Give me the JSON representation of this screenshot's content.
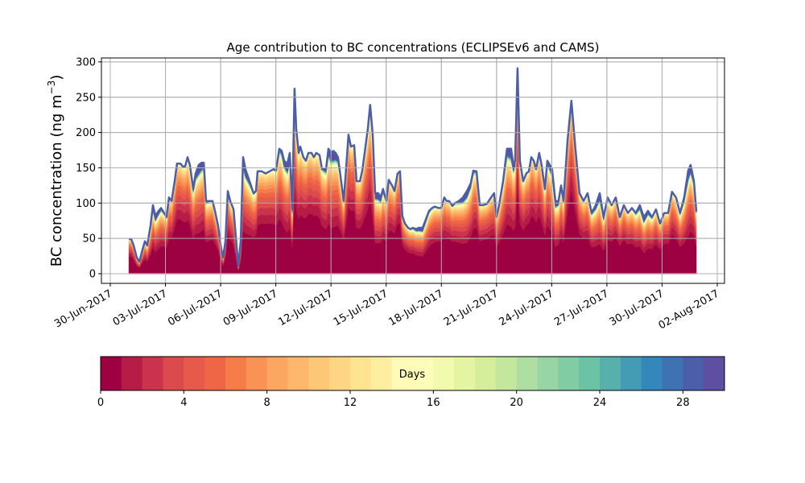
{
  "chart_data": {
    "type": "area",
    "stacked": true,
    "title": "Age contribution to BC concentrations (ECLIPSEv6 and CAMS)",
    "xlabel": "",
    "ylabel": "BC concentration (ng m",
    "ylabel_sup": "−3",
    "ylabel_close": ")",
    "ylim": [
      -15,
      305
    ],
    "yticks": [
      0,
      50,
      100,
      150,
      200,
      250,
      300
    ],
    "x_units": "days since 30-Jun-2017",
    "xlim": [
      -0.5,
      33.4
    ],
    "xticks": [
      0,
      3,
      6,
      9,
      12,
      15,
      18,
      21,
      24,
      27,
      30,
      33
    ],
    "xtick_labels": [
      "30-Jun-2017",
      "03-Jul-2017",
      "06-Jul-2017",
      "09-Jul-2017",
      "12-Jul-2017",
      "15-Jul-2017",
      "18-Jul-2017",
      "21-Jul-2017",
      "24-Jul-2017",
      "27-Jul-2017",
      "30-Jul-2017",
      "02-Aug-2017"
    ],
    "grid": true,
    "x": [
      1.01,
      1.14,
      1.27,
      1.44,
      1.58,
      1.75,
      1.88,
      2.01,
      2.19,
      2.32,
      2.45,
      2.63,
      2.76,
      2.93,
      3.06,
      3.19,
      3.33,
      3.5,
      3.63,
      3.81,
      3.94,
      4.07,
      4.2,
      4.33,
      4.51,
      4.64,
      4.81,
      4.95,
      5.08,
      5.21,
      5.38,
      5.56,
      5.69,
      5.86,
      6.04,
      6.13,
      6.26,
      6.39,
      6.52,
      6.7,
      6.83,
      6.96,
      7.09,
      7.22,
      7.35,
      7.57,
      7.79,
      7.92,
      8.01,
      8.23,
      8.45,
      8.66,
      8.88,
      9.01,
      9.19,
      9.32,
      9.45,
      9.63,
      9.76,
      9.89,
      10.02,
      10.11,
      10.24,
      10.33,
      10.5,
      10.63,
      10.77,
      10.94,
      11.07,
      11.2,
      11.38,
      11.51,
      11.73,
      11.86,
      11.99,
      12.12,
      12.25,
      12.38,
      12.52,
      12.69,
      12.82,
      12.95,
      13.08,
      13.26,
      13.39,
      13.57,
      13.7,
      13.83,
      14.0,
      14.13,
      14.27,
      14.4,
      14.57,
      14.7,
      14.83,
      15.01,
      15.14,
      15.32,
      15.45,
      15.62,
      15.75,
      15.88,
      16.02,
      16.19,
      16.32,
      16.45,
      16.63,
      16.76,
      16.98,
      17.2,
      17.33,
      17.5,
      17.64,
      17.85,
      17.99,
      18.16,
      18.29,
      18.42,
      18.6,
      18.73,
      18.95,
      19.17,
      19.39,
      19.6,
      19.74,
      19.91,
      20.09,
      20.26,
      20.48,
      20.7,
      20.87,
      21.0,
      21.14,
      21.36,
      21.57,
      21.79,
      21.92,
      22.01,
      22.14,
      22.27,
      22.45,
      22.62,
      22.76,
      22.89,
      23.02,
      23.15,
      23.32,
      23.45,
      23.63,
      23.76,
      23.89,
      24.02,
      24.2,
      24.37,
      24.51,
      24.64,
      24.86,
      25.07,
      25.29,
      25.51,
      25.73,
      25.95,
      26.17,
      26.39,
      26.61,
      26.82,
      27.04,
      27.26,
      27.48,
      27.7,
      27.92,
      28.14,
      28.36,
      28.57,
      28.79,
      29.01,
      29.23,
      29.45,
      29.67,
      29.89,
      30.11,
      30.33,
      30.54,
      30.76,
      30.98,
      31.2,
      31.42,
      31.55,
      31.73,
      31.86
    ],
    "total": [
      49,
      49,
      40,
      23,
      17,
      34,
      46,
      40,
      68,
      97,
      82,
      89,
      93,
      86,
      80,
      108,
      103,
      131,
      156,
      156,
      152,
      152,
      165,
      154,
      120,
      142,
      154,
      157,
      157,
      103,
      103,
      103,
      89,
      68,
      34,
      23,
      46,
      117,
      103,
      91,
      51,
      11,
      46,
      165,
      148,
      131,
      114,
      117,
      145,
      145,
      142,
      145,
      148,
      146,
      177,
      174,
      160,
      156,
      171,
      91,
      262,
      205,
      171,
      180,
      165,
      160,
      171,
      171,
      165,
      171,
      168,
      148,
      148,
      177,
      171,
      174,
      171,
      165,
      137,
      103,
      148,
      197,
      180,
      182,
      131,
      131,
      146,
      171,
      205,
      239,
      197,
      114,
      114,
      108,
      120,
      103,
      133,
      125,
      117,
      142,
      145,
      82,
      71,
      65,
      63,
      65,
      63,
      65,
      65,
      80,
      89,
      93,
      95,
      93,
      93,
      108,
      103,
      103,
      96,
      100,
      103,
      108,
      117,
      128,
      146,
      145,
      97,
      97,
      99,
      108,
      114,
      80,
      97,
      131,
      177,
      177,
      154,
      160,
      291,
      160,
      131,
      142,
      145,
      165,
      160,
      148,
      171,
      154,
      120,
      160,
      154,
      148,
      103,
      103,
      125,
      103,
      188,
      245,
      177,
      114,
      103,
      114,
      86,
      97,
      114,
      80,
      108,
      97,
      108,
      80,
      97,
      86,
      93,
      86,
      97,
      80,
      89,
      80,
      91,
      71,
      86,
      86,
      116,
      108,
      86,
      108,
      146,
      154,
      131,
      88
    ],
    "age_bins_days": [
      0,
      1,
      2,
      3,
      4,
      5,
      6,
      7,
      8,
      9,
      10,
      11,
      12,
      13,
      14,
      15,
      16,
      17,
      18,
      19,
      20,
      21,
      22,
      23,
      24,
      25,
      26,
      27,
      28,
      29
    ],
    "age_share_estimate": [
      0.45,
      0.09,
      0.07,
      0.06,
      0.05,
      0.045,
      0.04,
      0.035,
      0.03,
      0.025,
      0.02,
      0.018,
      0.015,
      0.012,
      0.01,
      0.008,
      0.007,
      0.006,
      0.005,
      0.004,
      0.004,
      0.003,
      0.003,
      0.003,
      0.003,
      0.003,
      0.003,
      0.003,
      0.003,
      0.012
    ],
    "colors": [
      "#9e0142",
      "#b71c47",
      "#cb334c",
      "#db4a4c",
      "#e75948",
      "#ee6646",
      "#f67c4a",
      "#f99355",
      "#fca761",
      "#fdb86b",
      "#fdc776",
      "#fed683",
      "#fee391",
      "#feee9f",
      "#fffab5",
      "#fbfdb9",
      "#f2faae",
      "#e4f4a0",
      "#d6ee9b",
      "#c4e79e",
      "#afdea3",
      "#98d5a4",
      "#81cba5",
      "#6bc2a5",
      "#57b0ab",
      "#449cb4",
      "#3487bb",
      "#3f72b2",
      "#4c5ea9",
      "#5e4fa2"
    ],
    "colorbar": {
      "label": "Days",
      "range": [
        0,
        30
      ],
      "ticks": [
        0,
        4,
        8,
        12,
        16,
        20,
        24,
        28
      ],
      "tick_labels": [
        "0",
        "4",
        "8",
        "12",
        "16",
        "20",
        "24",
        "28"
      ]
    }
  }
}
